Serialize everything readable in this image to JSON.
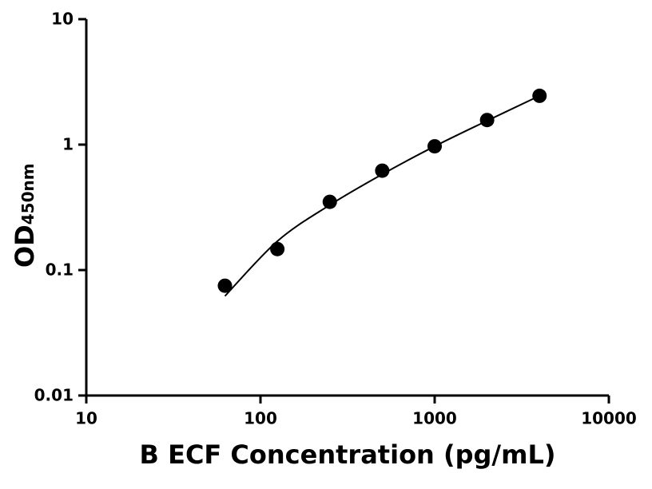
{
  "chart_data": {
    "type": "scatter",
    "x_label": "B ECF Concentration (pg/mL)",
    "y_label": "OD",
    "y_label_subscript": "450nm",
    "x": [
      62.5,
      125,
      250,
      500,
      1000,
      2000,
      4000
    ],
    "values": [
      0.075,
      0.147,
      0.35,
      0.62,
      0.97,
      1.57,
      2.45
    ],
    "color": "#000000",
    "fit": {
      "x": [
        62.5,
        125,
        250,
        500,
        1000,
        2000,
        4000
      ],
      "values": [
        0.062,
        0.17,
        0.33,
        0.58,
        0.97,
        1.55,
        2.45
      ]
    },
    "xlim": [
      10,
      10000
    ],
    "ylim": [
      0.01,
      10
    ],
    "xticks": [
      10,
      100,
      1000,
      10000
    ],
    "yticks": [
      0.01,
      0.1,
      1,
      10
    ],
    "xscale": "log",
    "yscale": "log",
    "grid": false
  }
}
